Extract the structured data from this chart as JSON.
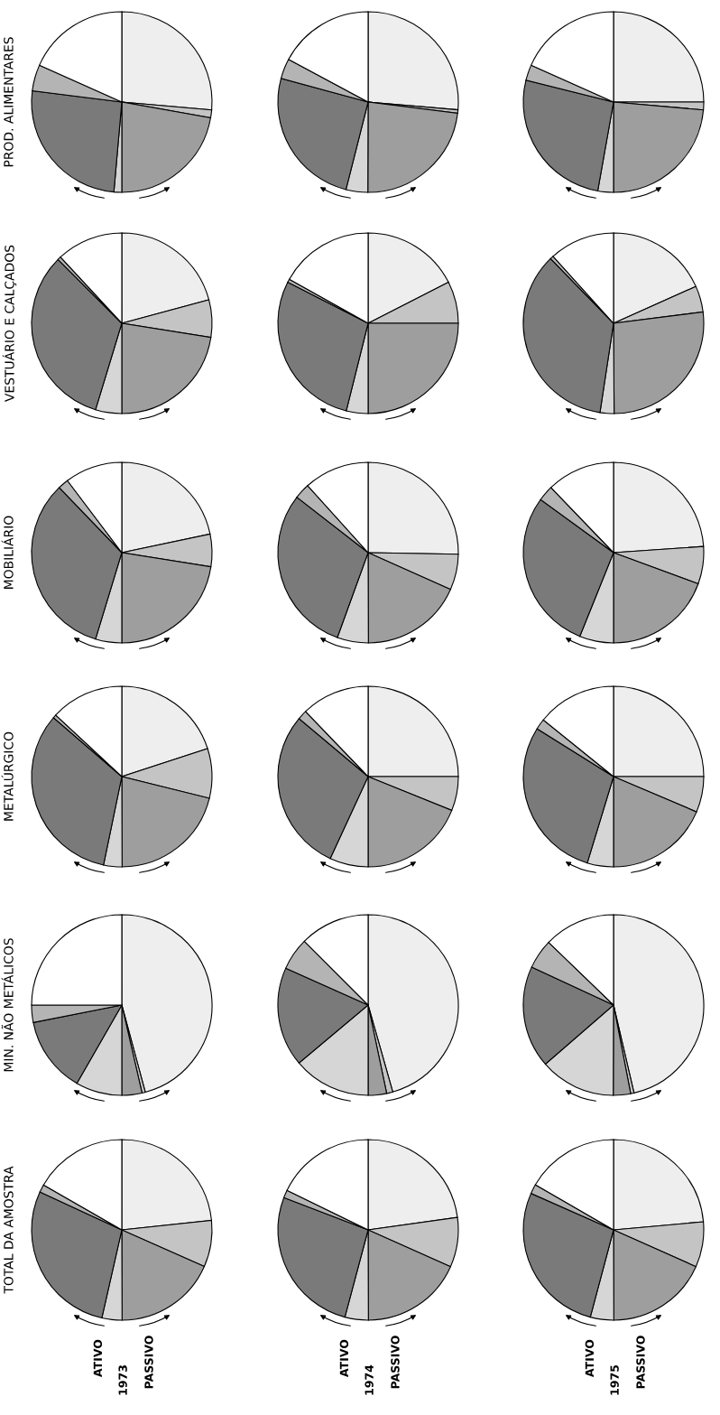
{
  "chart_data": [
    {
      "type": "pie",
      "title": "PROD. ALIMENTARES",
      "categories": [
        null,
        null,
        null,
        null,
        null,
        null,
        null
      ],
      "values": [
        26.4,
        1.4,
        22.2,
        1.4,
        25.6,
        4.7,
        18.3
      ],
      "colors": [
        "#eeeeee",
        "#c4c4c4",
        "#9e9e9e",
        "#d6d6d6",
        "#7a7a7a",
        "#b4b4b4",
        "#ffffff"
      ]
    },
    {
      "type": "pie",
      "categories": [
        null,
        null,
        null,
        null,
        null,
        null,
        null
      ],
      "values": [
        26.4,
        0.6,
        23.1,
        3.9,
        25.3,
        3.6,
        17.2
      ],
      "colors": [
        "#eeeeee",
        "#c4c4c4",
        "#9e9e9e",
        "#d6d6d6",
        "#7a7a7a",
        "#b4b4b4",
        "#ffffff"
      ]
    },
    {
      "type": "pie",
      "categories": [
        null,
        null,
        null,
        null,
        null,
        null,
        null
      ],
      "values": [
        25.0,
        1.4,
        23.6,
        2.8,
        26.1,
        2.8,
        18.3
      ],
      "colors": [
        "#eeeeee",
        "#c4c4c4",
        "#9e9e9e",
        "#d6d6d6",
        "#7a7a7a",
        "#b4b4b4",
        "#ffffff"
      ]
    },
    {
      "type": "pie",
      "title": "VESTUÁRIO E CALÇADOS",
      "categories": [
        null,
        null,
        null,
        null,
        null,
        null,
        null
      ],
      "values": [
        20.8,
        6.7,
        22.5,
        4.7,
        32.8,
        0.6,
        11.9
      ],
      "colors": [
        "#eeeeee",
        "#c4c4c4",
        "#9e9e9e",
        "#d6d6d6",
        "#7a7a7a",
        "#b4b4b4",
        "#ffffff"
      ]
    },
    {
      "type": "pie",
      "categories": [
        null,
        null,
        null,
        null,
        null,
        null,
        null
      ],
      "values": [
        17.5,
        7.5,
        25.0,
        3.9,
        28.6,
        0.6,
        16.9
      ],
      "colors": [
        "#eeeeee",
        "#c4c4c4",
        "#9e9e9e",
        "#d6d6d6",
        "#7a7a7a",
        "#b4b4b4",
        "#ffffff"
      ]
    },
    {
      "type": "pie",
      "categories": [
        null,
        null,
        null,
        null,
        null,
        null,
        null
      ],
      "values": [
        18.3,
        4.7,
        26.9,
        2.5,
        35.3,
        0.6,
        11.7
      ],
      "colors": [
        "#eeeeee",
        "#c4c4c4",
        "#9e9e9e",
        "#d6d6d6",
        "#7a7a7a",
        "#b4b4b4",
        "#ffffff"
      ]
    },
    {
      "type": "pie",
      "title": "MOBILIÁRIO",
      "categories": [
        null,
        null,
        null,
        null,
        null,
        null,
        null
      ],
      "values": [
        21.7,
        5.8,
        22.5,
        4.7,
        33.1,
        1.9,
        10.3
      ],
      "colors": [
        "#eeeeee",
        "#c4c4c4",
        "#9e9e9e",
        "#d6d6d6",
        "#7a7a7a",
        "#b4b4b4",
        "#ffffff"
      ]
    },
    {
      "type": "pie",
      "categories": [
        null,
        null,
        null,
        null,
        null,
        null,
        null
      ],
      "values": [
        25.3,
        6.4,
        18.3,
        5.6,
        30.0,
        2.8,
        11.7
      ],
      "colors": [
        "#eeeeee",
        "#c4c4c4",
        "#9e9e9e",
        "#d6d6d6",
        "#7a7a7a",
        "#b4b4b4",
        "#ffffff"
      ]
    },
    {
      "type": "pie",
      "categories": [
        null,
        null,
        null,
        null,
        null,
        null,
        null
      ],
      "values": [
        23.9,
        6.7,
        19.4,
        6.1,
        28.9,
        2.8,
        12.2
      ],
      "colors": [
        "#eeeeee",
        "#c4c4c4",
        "#9e9e9e",
        "#d6d6d6",
        "#7a7a7a",
        "#b4b4b4",
        "#ffffff"
      ]
    },
    {
      "type": "pie",
      "title": "METALÚRGICO",
      "categories": [
        null,
        null,
        null,
        null,
        null,
        null,
        null
      ],
      "values": [
        20.0,
        8.9,
        21.1,
        3.3,
        33.1,
        0.6,
        13.1
      ],
      "colors": [
        "#eeeeee",
        "#c4c4c4",
        "#9e9e9e",
        "#d6d6d6",
        "#7a7a7a",
        "#b4b4b4",
        "#ffffff"
      ]
    },
    {
      "type": "pie",
      "categories": [
        null,
        null,
        null,
        null,
        null,
        null,
        null
      ],
      "values": [
        25.0,
        6.1,
        18.9,
        6.9,
        29.2,
        1.7,
        12.2
      ],
      "colors": [
        "#eeeeee",
        "#c4c4c4",
        "#9e9e9e",
        "#d6d6d6",
        "#7a7a7a",
        "#b4b4b4",
        "#ffffff"
      ]
    },
    {
      "type": "pie",
      "categories": [
        null,
        null,
        null,
        null,
        null,
        null,
        null
      ],
      "values": [
        25.0,
        6.4,
        18.6,
        4.7,
        29.2,
        1.9,
        14.2
      ],
      "colors": [
        "#eeeeee",
        "#c4c4c4",
        "#9e9e9e",
        "#d6d6d6",
        "#7a7a7a",
        "#b4b4b4",
        "#ffffff"
      ]
    },
    {
      "type": "pie",
      "title": "MIN. NÃO METÁLICOS",
      "categories": [
        null,
        null,
        null,
        null,
        null,
        null,
        null
      ],
      "values": [
        45.8,
        0.6,
        3.6,
        8.3,
        13.6,
        3.1,
        25.0
      ],
      "colors": [
        "#eeeeee",
        "#c4c4c4",
        "#9e9e9e",
        "#d6d6d6",
        "#7a7a7a",
        "#b4b4b4",
        "#ffffff"
      ]
    },
    {
      "type": "pie",
      "categories": [
        null,
        null,
        null,
        null,
        null,
        null,
        null
      ],
      "values": [
        45.6,
        1.1,
        3.3,
        13.9,
        17.8,
        5.8,
        12.5
      ],
      "colors": [
        "#eeeeee",
        "#c4c4c4",
        "#9e9e9e",
        "#d6d6d6",
        "#7a7a7a",
        "#b4b4b4",
        "#ffffff"
      ]
    },
    {
      "type": "pie",
      "categories": [
        null,
        null,
        null,
        null,
        null,
        null,
        null
      ],
      "values": [
        46.4,
        0.6,
        3.1,
        13.6,
        18.3,
        5.3,
        12.8
      ],
      "colors": [
        "#eeeeee",
        "#c4c4c4",
        "#9e9e9e",
        "#d6d6d6",
        "#7a7a7a",
        "#b4b4b4",
        "#ffffff"
      ]
    },
    {
      "type": "pie",
      "title": "TOTAL DA AMOSTRA",
      "annotations": [
        "ATIVO",
        "1973",
        "PASSIVO"
      ],
      "categories": [
        null,
        null,
        null,
        null,
        null,
        null,
        null
      ],
      "values": [
        23.3,
        8.3,
        18.3,
        3.6,
        28.3,
        1.4,
        16.7
      ],
      "colors": [
        "#eeeeee",
        "#c4c4c4",
        "#9e9e9e",
        "#d6d6d6",
        "#7a7a7a",
        "#b4b4b4",
        "#ffffff"
      ]
    },
    {
      "type": "pie",
      "annotations": [
        "ATIVO",
        "1974",
        "PASSIVO"
      ],
      "categories": [
        null,
        null,
        null,
        null,
        null,
        null,
        null
      ],
      "values": [
        22.8,
        8.9,
        18.3,
        4.2,
        26.7,
        1.4,
        17.8
      ],
      "colors": [
        "#eeeeee",
        "#c4c4c4",
        "#9e9e9e",
        "#d6d6d6",
        "#7a7a7a",
        "#b4b4b4",
        "#ffffff"
      ]
    },
    {
      "type": "pie",
      "annotations": [
        "ATIVO",
        "1975",
        "PASSIVO"
      ],
      "categories": [
        null,
        null,
        null,
        null,
        null,
        null,
        null
      ],
      "values": [
        23.6,
        8.1,
        18.3,
        4.2,
        27.5,
        1.7,
        16.7
      ],
      "colors": [
        "#eeeeee",
        "#c4c4c4",
        "#9e9e9e",
        "#d6d6d6",
        "#7a7a7a",
        "#b4b4b4",
        "#ffffff"
      ]
    }
  ]
}
